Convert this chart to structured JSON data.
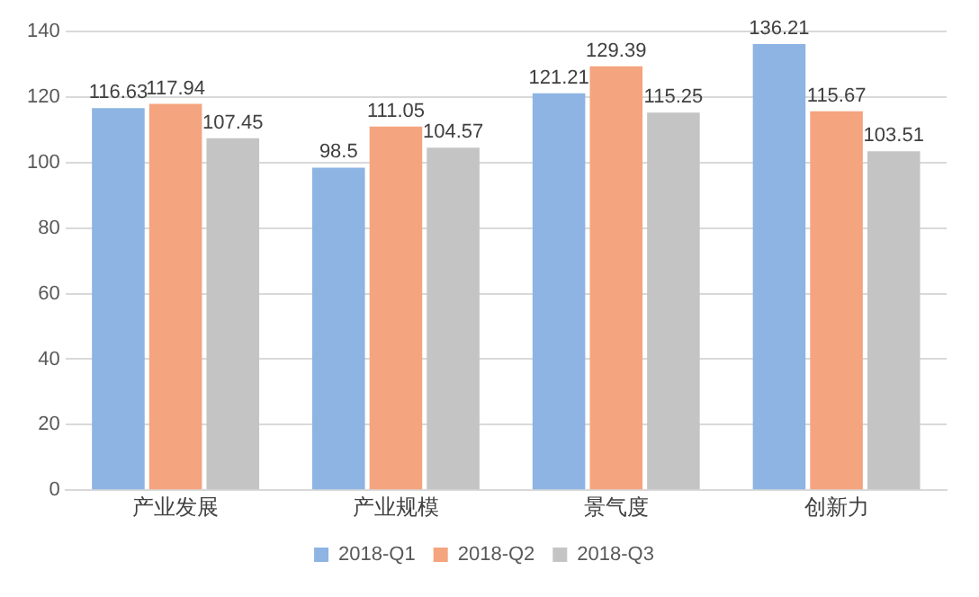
{
  "chart_data": {
    "type": "bar",
    "categories": [
      "产业发展",
      "产业规模",
      "景气度",
      "创新力"
    ],
    "series": [
      {
        "name": "2018-Q1",
        "color": "#8db4e2",
        "values": [
          116.63,
          98.5,
          121.21,
          136.21
        ]
      },
      {
        "name": "2018-Q2",
        "color": "#f4a47e",
        "values": [
          117.94,
          111.05,
          129.39,
          115.67
        ]
      },
      {
        "name": "2018-Q3",
        "color": "#c4c4c4",
        "values": [
          107.45,
          104.57,
          115.25,
          103.51
        ]
      }
    ],
    "ylim": [
      0,
      140
    ],
    "yticks": [
      0,
      20,
      40,
      60,
      80,
      100,
      120,
      140
    ],
    "grid": "y",
    "legend": "bottom",
    "data_labels": true
  }
}
